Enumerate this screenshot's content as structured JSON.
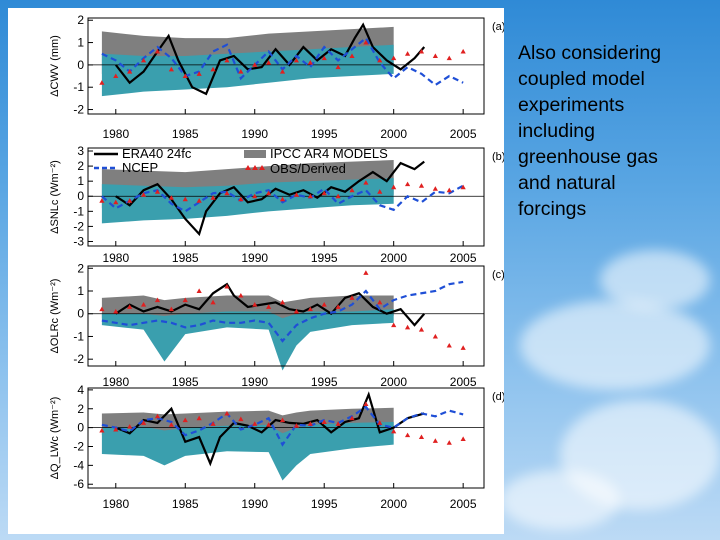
{
  "slide": {
    "caption": "Also considering\ncoupled model\nexperiments\nincluding\ngreenhouse gas\nand natural\nforcings"
  },
  "colors": {
    "era40": "#000000",
    "ncep": "#1f4fd6",
    "obs": "#e02020",
    "ipcc_gray": "#7f7f7f",
    "ipcc_teal": "#3a9fae"
  },
  "legend": {
    "era40": "ERA40 24fc",
    "ncep": "NCEP",
    "ipcc": "IPCC AR4 MODELS",
    "obs": "OBS/Derived"
  },
  "chart_data": [
    {
      "type": "line",
      "panel": "(a)",
      "ylabel": "ΔCWV (mm)",
      "ylim": [
        -2.2,
        2.1
      ],
      "yticks": [
        -2,
        -1,
        0,
        1,
        2
      ],
      "xticks": [
        1980,
        1985,
        1990,
        1995,
        2000,
        2005
      ],
      "xlim": [
        1978,
        2006.5
      ],
      "series": [
        {
          "name": "ERA40 24fc",
          "x": [
            1980,
            1981,
            1982,
            1983,
            1983.8,
            1984.5,
            1985.5,
            1986.5,
            1987.5,
            1988.5,
            1989.5,
            1990.5,
            1991.5,
            1992.5,
            1993.5,
            1994.5,
            1995.5,
            1996.5,
            1997.2,
            1997.8,
            1998.5,
            1999.5,
            2000.5,
            2001.5,
            2002.2
          ],
          "y": [
            0.0,
            -0.8,
            -0.3,
            0.6,
            1.3,
            0.2,
            -1.0,
            -1.3,
            0.2,
            0.4,
            -0.2,
            -0.1,
            0.7,
            0.0,
            0.8,
            0.2,
            0.7,
            0.4,
            1.2,
            1.8,
            0.8,
            0.2,
            -0.2,
            0.3,
            0.8
          ]
        },
        {
          "name": "NCEP",
          "x": [
            1979,
            1980,
            1981,
            1982,
            1983,
            1984,
            1985,
            1986,
            1987,
            1988,
            1989,
            1990,
            1991,
            1992,
            1993,
            1994,
            1995,
            1996,
            1997,
            1998,
            1999,
            2000,
            2001,
            2002,
            2003,
            2004,
            2005
          ],
          "y": [
            0.5,
            0.2,
            -0.3,
            0.3,
            0.8,
            0.3,
            -0.5,
            -0.3,
            0.6,
            0.9,
            -0.6,
            0.0,
            0.6,
            -0.2,
            0.4,
            -0.1,
            0.8,
            0.2,
            0.7,
            1.2,
            0.1,
            -0.6,
            -0.1,
            -0.4,
            -0.9,
            -0.5,
            -0.8
          ]
        },
        {
          "name": "OBS/Derived",
          "x": [
            1979,
            1980,
            1981,
            1982,
            1983,
            1984,
            1985,
            1986,
            1987,
            1988,
            1989,
            1990,
            1991,
            1992,
            1993,
            1994,
            1995,
            1996,
            1997,
            1998,
            1999,
            2000,
            2001,
            2002,
            2003,
            2004,
            2005
          ],
          "y": [
            -0.8,
            -0.5,
            -0.3,
            0.2,
            0.6,
            -0.2,
            -0.5,
            -0.4,
            -0.2,
            0.2,
            -0.3,
            0.0,
            0.1,
            -0.3,
            0.2,
            0.1,
            0.3,
            -0.1,
            0.4,
            1.0,
            0.2,
            0.3,
            0.5,
            0.6,
            0.4,
            0.3,
            0.6
          ]
        }
      ],
      "ipcc_band": {
        "x": [
          1979,
          1982,
          1985,
          1988,
          1991,
          1994,
          1997,
          2000
        ],
        "gray_upper": [
          1.5,
          1.3,
          1.2,
          1.2,
          1.4,
          1.5,
          1.6,
          1.7
        ],
        "teal_upper": [
          0.5,
          0.4,
          0.4,
          0.5,
          0.6,
          0.7,
          0.8,
          0.9
        ],
        "teal_lower": [
          -1.4,
          -1.2,
          -1.1,
          -1.0,
          -0.8,
          -0.6,
          -0.5,
          -0.4
        ],
        "gray_lower": [
          -0.4,
          -0.3,
          -0.3,
          -0.2,
          -0.1,
          0.0,
          0.1,
          0.1
        ]
      }
    },
    {
      "type": "line",
      "panel": "(b)",
      "ylabel": "ΔSNLc (Wm⁻²)",
      "ylim": [
        -3.3,
        3.2
      ],
      "yticks": [
        -3,
        -2,
        -1,
        0,
        1,
        2,
        3
      ],
      "xticks": [
        1980,
        1985,
        1990,
        1995,
        2000,
        2005
      ],
      "xlim": [
        1978,
        2006.5
      ],
      "series": [
        {
          "name": "ERA40 24fc",
          "x": [
            1980,
            1981,
            1982,
            1983,
            1984,
            1985,
            1986,
            1986.5,
            1987.5,
            1988.5,
            1989.5,
            1990.5,
            1991.5,
            1992.5,
            1993.5,
            1994.5,
            1995.5,
            1996.5,
            1997.5,
            1998.5,
            1999.5,
            2000.5,
            2001.5,
            2002.2
          ],
          "y": [
            0.0,
            -0.6,
            0.4,
            0.8,
            -0.2,
            -1.5,
            -2.5,
            -1.0,
            0.2,
            0.6,
            -0.4,
            -0.2,
            0.5,
            0.1,
            0.4,
            -0.1,
            0.6,
            0.3,
            1.0,
            1.6,
            1.0,
            2.2,
            1.8,
            2.3
          ]
        },
        {
          "name": "NCEP",
          "x": [
            1979,
            1980,
            1981,
            1982,
            1983,
            1984,
            1985,
            1986,
            1987,
            1988,
            1989,
            1990,
            1991,
            1992,
            1993,
            1994,
            1995,
            1996,
            1997,
            1998,
            1999,
            2000,
            2001,
            2002,
            2003,
            2004,
            2005
          ],
          "y": [
            0.0,
            -0.8,
            -0.3,
            0.2,
            0.4,
            -0.5,
            -1.0,
            -0.4,
            0.2,
            0.3,
            -0.3,
            0.2,
            0.4,
            -0.4,
            0.1,
            -0.1,
            0.5,
            -0.5,
            0.0,
            0.4,
            -0.6,
            -0.9,
            0.0,
            -0.4,
            0.3,
            0.2,
            0.7
          ]
        },
        {
          "name": "OBS/Derived",
          "x": [
            1979,
            1980,
            1981,
            1982,
            1983,
            1984,
            1985,
            1986,
            1987,
            1988,
            1989,
            1990,
            1991,
            1992,
            1993,
            1994,
            1995,
            1996,
            1997,
            1998,
            1999,
            2000,
            2001,
            2002,
            2003,
            2004,
            2005
          ],
          "y": [
            -0.3,
            -0.4,
            -0.3,
            0.1,
            0.3,
            -0.1,
            -0.2,
            -0.3,
            -0.1,
            0.2,
            -0.2,
            0.0,
            0.2,
            -0.2,
            0.1,
            0.0,
            0.2,
            0.0,
            0.4,
            0.9,
            0.3,
            0.6,
            0.8,
            0.7,
            0.5,
            0.4,
            0.6
          ]
        }
      ],
      "ipcc_band": {
        "x": [
          1979,
          1982,
          1985,
          1988,
          1991,
          1994,
          1997,
          2000
        ],
        "gray_upper": [
          1.8,
          1.7,
          1.6,
          1.8,
          2.0,
          2.2,
          2.3,
          2.4
        ],
        "teal_upper": [
          0.8,
          0.7,
          0.6,
          0.7,
          0.9,
          1.0,
          1.1,
          1.2
        ],
        "teal_lower": [
          -1.8,
          -1.6,
          -1.5,
          -1.3,
          -1.0,
          -0.8,
          -0.6,
          -0.5
        ],
        "gray_lower": [
          -0.8,
          -0.7,
          -0.7,
          -0.5,
          -0.3,
          -0.2,
          0.0,
          0.1
        ]
      }
    },
    {
      "type": "line",
      "panel": "(c)",
      "ylabel": "ΔOLRc (Wm⁻²)",
      "ylim": [
        -2.3,
        2.1
      ],
      "yticks": [
        -2,
        -1,
        0,
        1,
        2
      ],
      "xticks": [
        1980,
        1985,
        1990,
        1995,
        2000,
        2005
      ],
      "xlim": [
        1978,
        2006.5
      ],
      "series": [
        {
          "name": "ERA40 24fc",
          "x": [
            1980,
            1981,
            1982,
            1983,
            1984,
            1985,
            1986,
            1987,
            1988,
            1988.5,
            1989.5,
            1990.5,
            1991.5,
            1992.5,
            1993.5,
            1994.5,
            1995.5,
            1996.5,
            1997.5,
            1998.5,
            1999.5,
            2000.5,
            2001.5,
            2002.2
          ],
          "y": [
            0.0,
            0.4,
            0.1,
            0.3,
            0.1,
            0.4,
            0.2,
            0.9,
            1.3,
            0.8,
            0.3,
            0.4,
            0.5,
            0.2,
            0.1,
            0.4,
            0.0,
            0.7,
            0.9,
            0.3,
            0.0,
            0.2,
            -0.5,
            0.0
          ]
        },
        {
          "name": "NCEP",
          "x": [
            1979,
            1980,
            1981,
            1982,
            1983,
            1984,
            1985,
            1986,
            1987,
            1988,
            1989,
            1990,
            1991,
            1992,
            1993,
            1994,
            1995,
            1996,
            1997,
            1998,
            1999,
            2000,
            2001,
            2002,
            2003,
            2004,
            2005
          ],
          "y": [
            -0.3,
            -0.4,
            -0.5,
            -0.4,
            -0.3,
            -0.4,
            -0.6,
            -0.5,
            -0.3,
            -0.4,
            -0.4,
            -0.3,
            -0.4,
            -1.2,
            -0.5,
            -0.2,
            0.0,
            0.1,
            0.4,
            1.0,
            0.2,
            0.6,
            0.8,
            0.9,
            1.0,
            1.3,
            1.4
          ]
        },
        {
          "name": "OBS/Derived",
          "x": [
            1979,
            1980,
            1981,
            1982,
            1983,
            1984,
            1985,
            1986,
            1987,
            1988,
            1989,
            1990,
            1991,
            1992,
            1993,
            1994,
            1995,
            1996,
            1997,
            1998,
            1999,
            2000,
            2001,
            2002,
            2003,
            2004,
            2005
          ],
          "y": [
            0.2,
            0.1,
            0.3,
            0.4,
            0.6,
            0.2,
            0.6,
            1.0,
            0.5,
            1.2,
            0.8,
            0.4,
            0.3,
            0.5,
            0.1,
            0.2,
            0.4,
            0.3,
            0.7,
            1.8,
            0.5,
            -0.5,
            -0.6,
            -0.7,
            -1.0,
            -1.4,
            -1.5
          ]
        }
      ],
      "ipcc_band": {
        "x": [
          1979,
          1982,
          1983.5,
          1985,
          1988,
          1991,
          1992,
          1993,
          1994,
          1997,
          2000
        ],
        "gray_upper": [
          0.7,
          0.8,
          0.6,
          0.7,
          0.8,
          0.8,
          0.5,
          0.6,
          0.7,
          0.8,
          0.8
        ],
        "teal_upper": [
          0.0,
          0.0,
          -0.1,
          0.0,
          0.1,
          0.1,
          -0.2,
          0.0,
          0.1,
          0.1,
          0.2
        ],
        "teal_lower": [
          -0.5,
          -0.7,
          -2.1,
          -0.9,
          -0.6,
          -0.7,
          -2.5,
          -1.4,
          -0.8,
          -0.5,
          -0.4
        ],
        "gray_lower": [
          -0.2,
          -0.3,
          -0.6,
          -0.3,
          -0.2,
          -0.3,
          -0.9,
          -0.5,
          -0.3,
          -0.2,
          -0.1
        ]
      }
    },
    {
      "type": "line",
      "panel": "(d)",
      "ylabel": "ΔQ_LWc (Wm⁻²)",
      "ylim": [
        -6.4,
        4.2
      ],
      "yticks": [
        -6,
        -4,
        -2,
        0,
        2,
        4
      ],
      "xticks": [
        1980,
        1985,
        1990,
        1995,
        2000,
        2005
      ],
      "xlim": [
        1978,
        2006.5
      ],
      "series": [
        {
          "name": "ERA40 24fc",
          "x": [
            1980,
            1981,
            1982,
            1983,
            1984,
            1985,
            1986,
            1986.8,
            1987.5,
            1988.5,
            1989.5,
            1990.5,
            1991.5,
            1992.5,
            1993.5,
            1994.5,
            1995.5,
            1996.5,
            1997.5,
            1998.2,
            1999,
            2000,
            2001,
            2002.2
          ],
          "y": [
            0.0,
            -0.6,
            0.8,
            0.5,
            2.0,
            -1.5,
            -1.0,
            -3.8,
            -1.0,
            0.5,
            0.2,
            -0.5,
            0.8,
            0.5,
            0.4,
            0.8,
            -0.5,
            0.6,
            1.0,
            3.5,
            -0.5,
            0.0,
            1.0,
            1.5
          ]
        },
        {
          "name": "NCEP",
          "x": [
            1979,
            1980,
            1981,
            1982,
            1983,
            1984,
            1985,
            1986,
            1987,
            1988,
            1989,
            1990,
            1991,
            1992,
            1993,
            1994,
            1995,
            1996,
            1997,
            1998,
            1999,
            2000,
            2001,
            2002,
            2003,
            2004,
            2005
          ],
          "y": [
            0.3,
            0.0,
            -0.4,
            0.8,
            1.0,
            0.6,
            -0.8,
            -0.3,
            0.5,
            1.5,
            -0.2,
            0.3,
            1.0,
            -1.8,
            0.3,
            0.2,
            0.8,
            0.5,
            1.2,
            2.2,
            0.3,
            0.0,
            1.0,
            1.5,
            1.2,
            1.8,
            1.4
          ]
        },
        {
          "name": "OBS/Derived",
          "x": [
            1979,
            1980,
            1981,
            1982,
            1983,
            1984,
            1985,
            1986,
            1987,
            1988,
            1989,
            1990,
            1991,
            1992,
            1993,
            1994,
            1995,
            1996,
            1997,
            1998,
            1999,
            2000,
            2001,
            2002,
            2003,
            2004,
            2005
          ],
          "y": [
            -0.3,
            -0.2,
            0.1,
            0.5,
            1.2,
            0.3,
            0.8,
            1.0,
            0.4,
            1.5,
            0.9,
            0.4,
            0.3,
            0.8,
            0.2,
            0.4,
            0.6,
            0.4,
            1.0,
            2.5,
            0.5,
            -0.4,
            -0.8,
            -1.0,
            -1.4,
            -1.6,
            -1.2
          ]
        }
      ],
      "ipcc_band": {
        "x": [
          1979,
          1982,
          1983.5,
          1985,
          1988,
          1991,
          1992,
          1993,
          1994,
          1997,
          2000
        ],
        "gray_upper": [
          1.5,
          1.6,
          1.4,
          1.5,
          1.7,
          1.8,
          1.3,
          1.6,
          1.8,
          2.0,
          2.1
        ],
        "teal_upper": [
          0.0,
          0.1,
          -0.3,
          0.0,
          0.2,
          0.3,
          -0.6,
          0.0,
          0.3,
          0.5,
          0.6
        ],
        "teal_lower": [
          -2.8,
          -3.0,
          -4.0,
          -3.0,
          -2.5,
          -2.6,
          -5.6,
          -4.0,
          -2.8,
          -2.2,
          -1.8
        ],
        "gray_lower": [
          -0.8,
          -0.9,
          -1.4,
          -0.9,
          -0.6,
          -0.7,
          -2.2,
          -1.5,
          -0.8,
          -0.5,
          -0.3
        ]
      }
    }
  ]
}
